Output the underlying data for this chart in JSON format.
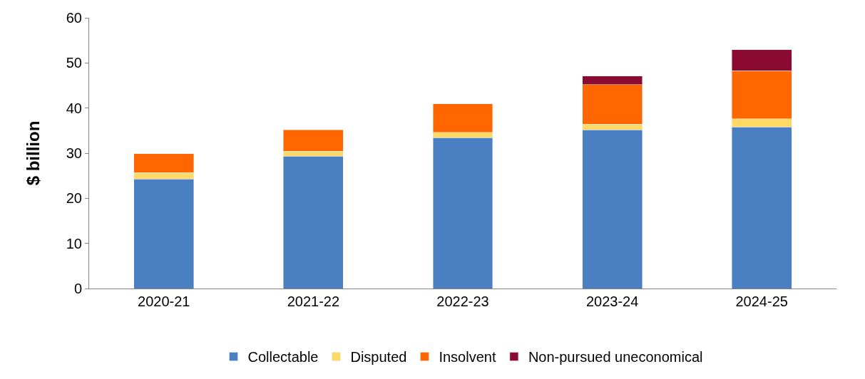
{
  "chart_data": {
    "type": "bar",
    "stacked": true,
    "ylabel": "$ billion",
    "categories": [
      "2020-21",
      "2021-22",
      "2022-23",
      "2023-24",
      "2024-25"
    ],
    "series": [
      {
        "name": "Collectable",
        "color": "#4a7fc1",
        "values": [
          24.3,
          29.3,
          33.4,
          35.2,
          35.8
        ]
      },
      {
        "name": "Disputed",
        "color": "#ffd966",
        "values": [
          1.4,
          1.1,
          1.2,
          1.2,
          1.8
        ]
      },
      {
        "name": "Insolvent",
        "color": "#ff6600",
        "values": [
          4.2,
          4.8,
          6.3,
          8.8,
          10.7
        ]
      },
      {
        "name": "Non-pursued uneconomical",
        "color": "#8b0a32",
        "values": [
          null,
          null,
          null,
          1.9,
          4.6
        ]
      }
    ],
    "ylim": [
      0,
      60
    ],
    "yticks": [
      0,
      10,
      20,
      30,
      40,
      50,
      60
    ],
    "legend": "bottom"
  }
}
